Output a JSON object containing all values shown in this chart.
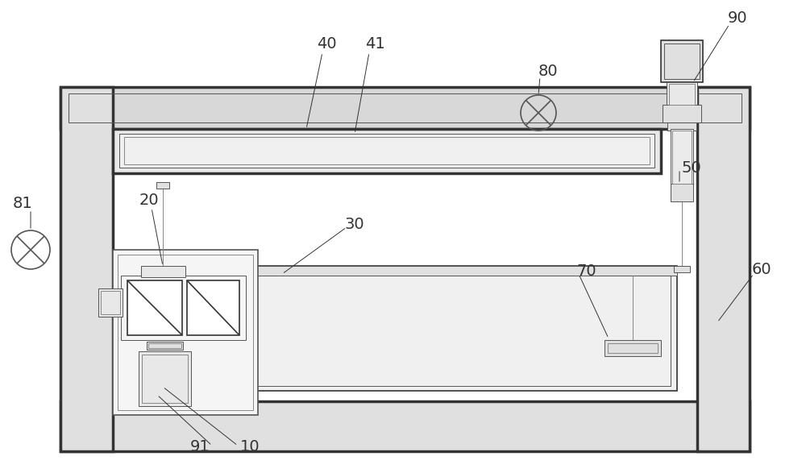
{
  "bg_color": "#ffffff",
  "line_color": "#888888",
  "dark_line": "#333333",
  "med_line": "#555555",
  "label_color": "#333333",
  "figsize": [
    10.0,
    5.87
  ],
  "dpi": 100
}
